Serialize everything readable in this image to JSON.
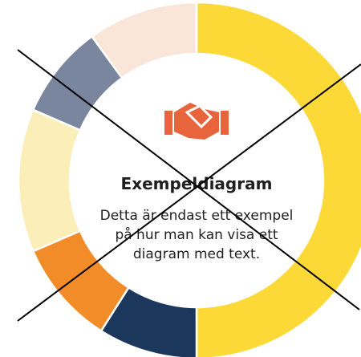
{
  "chart_data": {
    "type": "donut",
    "title": "Exempeldiagram",
    "text": [
      "Detta är endast ett exempel",
      "på hur man kan visa ett",
      "diagram med text."
    ],
    "values": [
      50,
      9,
      9.5,
      13,
      8.5,
      10
    ],
    "colors": [
      "#fcd937",
      "#1b385c",
      "#f28c28",
      "#fbeeb8",
      "#7a869e",
      "#fae6d9"
    ]
  }
}
